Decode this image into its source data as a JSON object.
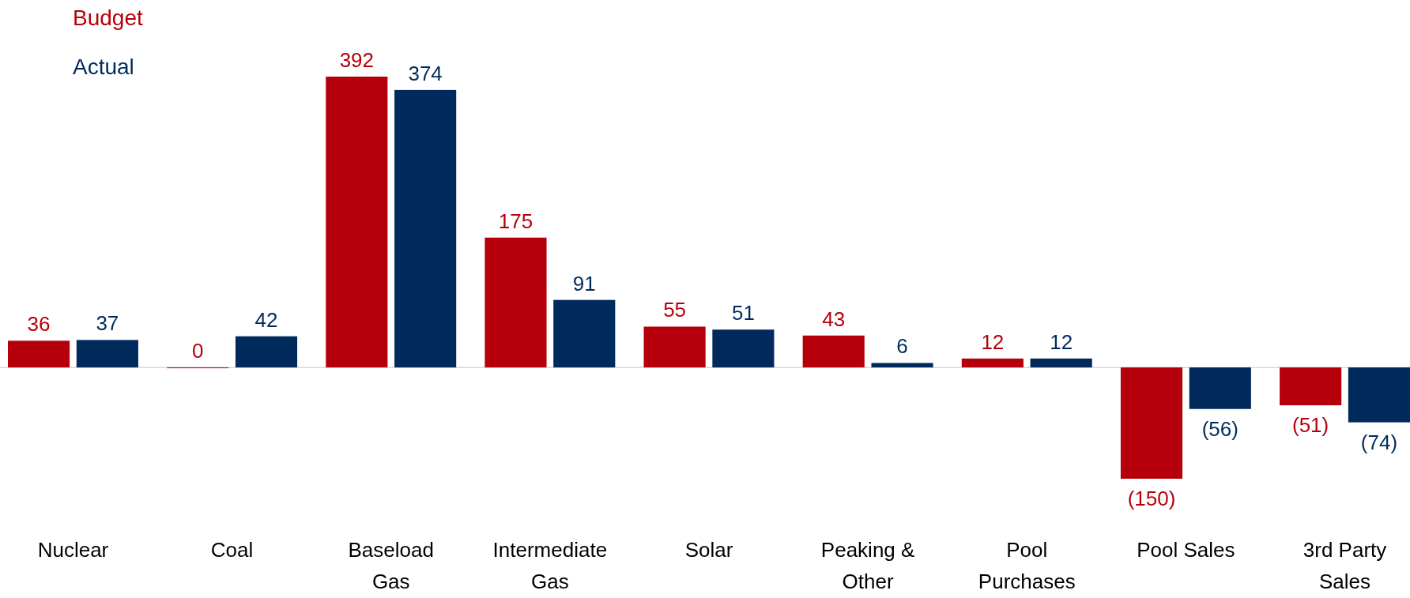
{
  "chart_data": {
    "type": "bar",
    "categories": [
      "Nuclear",
      "Coal",
      "Baseload Gas",
      "Intermediate Gas",
      "Solar",
      "Peaking & Other",
      "Pool Purchases",
      "Pool Sales",
      "3rd Party Sales"
    ],
    "series": [
      {
        "name": "Budget",
        "color": "#b5000b",
        "values": [
          36,
          0,
          392,
          175,
          55,
          43,
          12,
          -150,
          -51
        ],
        "value_labels": [
          "36",
          "0",
          "392",
          "175",
          "55",
          "43",
          "12",
          "(150)",
          "(51)"
        ]
      },
      {
        "name": "Actual",
        "color": "#002a5c",
        "values": [
          37,
          42,
          374,
          91,
          51,
          6,
          12,
          -56,
          -74
        ],
        "value_labels": [
          "37",
          "42",
          "374",
          "91",
          "51",
          "6",
          "12",
          "(56)",
          "(74)"
        ]
      }
    ],
    "legend": "top left"
  }
}
